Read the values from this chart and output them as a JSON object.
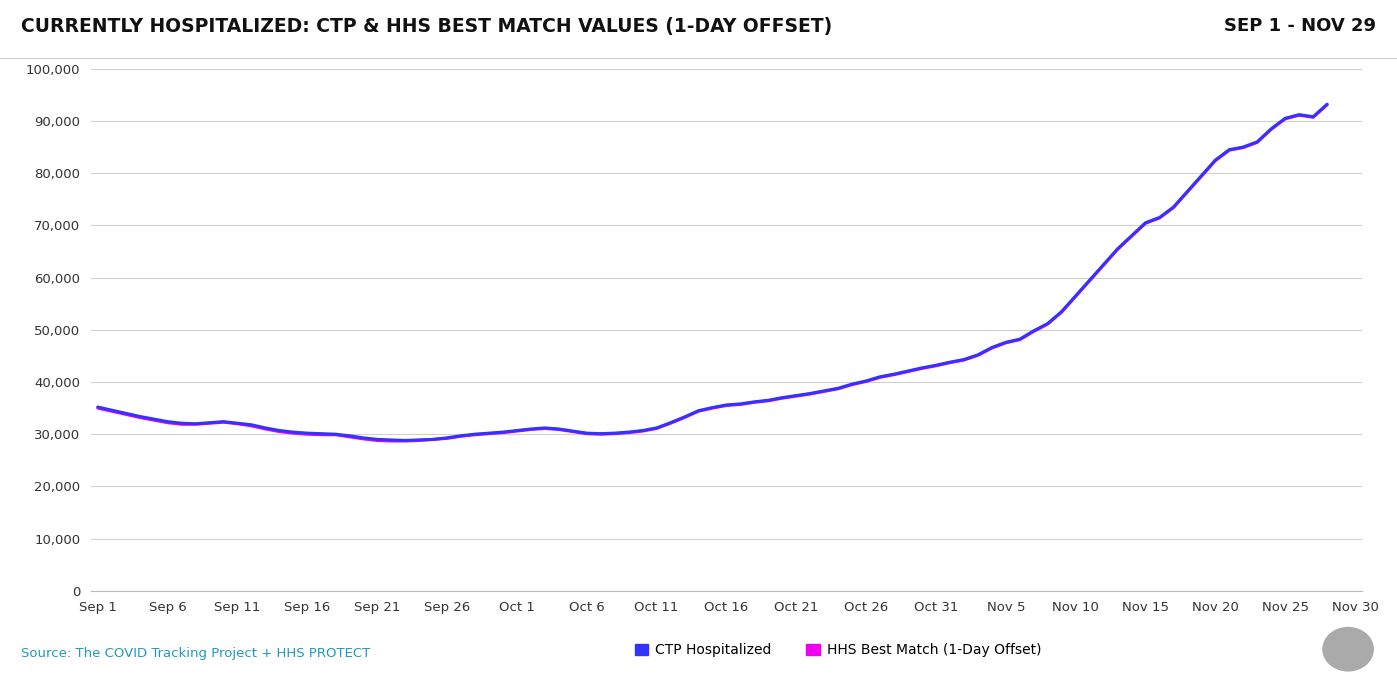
{
  "title_left": "CURRENTLY HOSPITALIZED: CTP & HHS BEST MATCH VALUES (1-DAY OFFSET)",
  "title_right": "SEP 1 - NOV 29",
  "source_text": "Source: The COVID Tracking Project + HHS PROTECT",
  "legend_ctp": "CTP Hospitalized",
  "legend_hhs": "HHS Best Match (1-Day Offset)",
  "ctp_color": "#3333ff",
  "hhs_color": "#ee00ee",
  "background_color": "#ffffff",
  "ylim": [
    0,
    100000
  ],
  "yticks": [
    0,
    10000,
    20000,
    30000,
    40000,
    50000,
    60000,
    70000,
    80000,
    90000,
    100000
  ],
  "ctp_values": [
    35200,
    34600,
    34000,
    33400,
    32900,
    32400,
    32100,
    32000,
    32200,
    32400,
    32100,
    31800,
    31200,
    30700,
    30400,
    30200,
    30100,
    30000,
    29700,
    29300,
    29000,
    28900,
    28800,
    28900,
    29000,
    29300,
    29700,
    30000,
    30200,
    30400,
    30700,
    31000,
    31200,
    31000,
    30600,
    30200,
    30100,
    30200,
    30400,
    30700,
    31200,
    32200,
    33300,
    34500,
    35100,
    35600,
    35800,
    36200,
    36500,
    37000,
    37400,
    37800,
    38300,
    38800,
    39600,
    40200,
    41000,
    41500,
    42100,
    42700,
    43200,
    43800,
    44300,
    45200,
    46600,
    47600,
    48200,
    49800,
    51200,
    53500,
    56500,
    59500,
    62500,
    65500,
    68000,
    70500,
    71500,
    73500,
    76500,
    79500,
    82500,
    84500,
    85000,
    86000,
    88500,
    90500,
    91200,
    90800,
    93200
  ],
  "hhs_values": [
    35000,
    34400,
    33800,
    33200,
    32700,
    32200,
    31900,
    31900,
    32100,
    32300,
    32000,
    31600,
    31000,
    30500,
    30200,
    30000,
    29900,
    29900,
    29500,
    29100,
    28800,
    28700,
    28700,
    28800,
    29000,
    29200,
    29600,
    29900,
    30100,
    30300,
    30600,
    30900,
    31100,
    30900,
    30500,
    30100,
    30000,
    30100,
    30300,
    30600,
    31100,
    32100,
    33200,
    34400,
    35000,
    35500,
    35700,
    36100,
    36400,
    36900,
    37300,
    37700,
    38200,
    38700,
    39500,
    40100,
    40900,
    41400,
    42000,
    42600,
    43100,
    43700,
    44200,
    45100,
    46500,
    47500,
    48100,
    49700,
    51100,
    53400,
    56400,
    59400,
    62400,
    65400,
    67900,
    70400,
    71400,
    73400,
    76400,
    79400,
    82400,
    84400,
    84900,
    85900,
    88400,
    90400,
    91100,
    90700,
    93100
  ],
  "xtick_labels": [
    "Sep 1",
    "Sep 6",
    "Sep 11",
    "Sep 16",
    "Sep 21",
    "Sep 26",
    "Oct 1",
    "Oct 6",
    "Oct 11",
    "Oct 16",
    "Oct 21",
    "Oct 26",
    "Oct 31",
    "Nov 5",
    "Nov 10",
    "Nov 15",
    "Nov 20",
    "Nov 25",
    "Nov 30"
  ],
  "xtick_positions": [
    0,
    5,
    10,
    15,
    20,
    25,
    30,
    35,
    40,
    45,
    50,
    55,
    60,
    65,
    70,
    75,
    80,
    85,
    90
  ]
}
